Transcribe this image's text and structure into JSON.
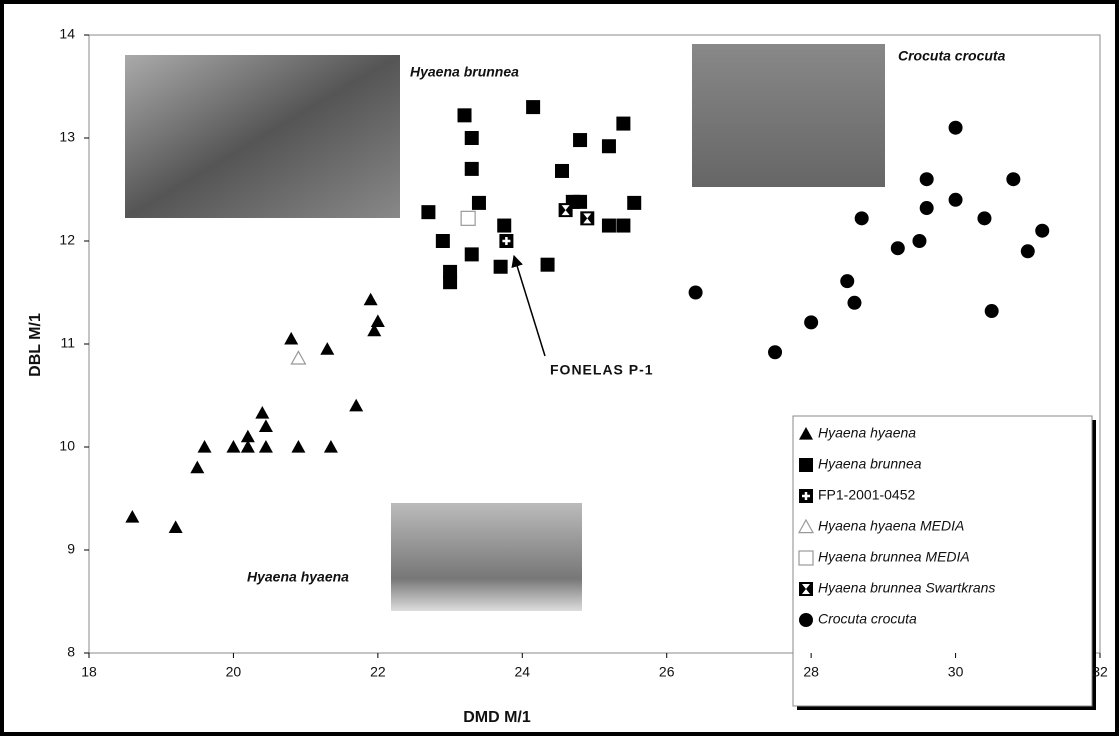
{
  "chart_data": {
    "type": "scatter",
    "xlabel": "DMD M/1",
    "ylabel": "DBL M/1",
    "xlim": [
      18,
      32
    ],
    "ylim": [
      8,
      14
    ],
    "xticks": [
      18,
      20,
      22,
      24,
      26,
      28,
      30,
      32
    ],
    "yticks": [
      8,
      9,
      10,
      11,
      12,
      13,
      14
    ],
    "grid": false,
    "annotations": [
      {
        "text": "Hyaena brunnea"
      },
      {
        "text": "Crocuta crocuta"
      },
      {
        "text": "Hyaena hyaena"
      },
      {
        "text": "FONELAS P-1"
      }
    ],
    "series": [
      {
        "name": "Hyaena hyaena",
        "marker": "triangle",
        "color": "#000000",
        "italic": true,
        "x": [
          18.6,
          19.2,
          19.5,
          19.6,
          20.0,
          20.2,
          20.2,
          20.4,
          20.45,
          20.45,
          20.8,
          20.9,
          21.3,
          21.35,
          21.7,
          21.9,
          22.0,
          21.95
        ],
        "y": [
          9.32,
          9.22,
          9.8,
          10.0,
          10.0,
          10.1,
          10.0,
          10.33,
          10.2,
          10.0,
          11.05,
          10.0,
          10.95,
          10.0,
          10.4,
          11.43,
          11.22,
          11.13
        ]
      },
      {
        "name": "Hyaena brunnea",
        "marker": "square",
        "color": "#000000",
        "italic": true,
        "x": [
          22.7,
          22.9,
          23.0,
          23.0,
          23.2,
          23.3,
          23.3,
          23.4,
          23.3,
          23.75,
          23.7,
          24.15,
          24.35,
          24.55,
          24.7,
          24.8,
          24.8,
          25.2,
          25.2,
          25.4,
          25.4,
          25.55
        ],
        "y": [
          12.28,
          12.0,
          11.7,
          11.6,
          13.22,
          13.0,
          12.7,
          12.37,
          11.87,
          12.15,
          11.75,
          13.3,
          11.77,
          12.68,
          12.38,
          12.38,
          12.98,
          12.15,
          12.92,
          12.15,
          13.14,
          12.37
        ]
      },
      {
        "name": "FP1-2001-0452",
        "marker": "plus-square",
        "color": "#000000",
        "italic": false,
        "x": [
          23.78
        ],
        "y": [
          12.0
        ]
      },
      {
        "name": "Hyaena hyaena MEDIA",
        "marker": "triangle-open",
        "color": "#999999",
        "italic": true,
        "x": [
          20.9
        ],
        "y": [
          10.86
        ]
      },
      {
        "name": "Hyaena brunnea MEDIA",
        "marker": "square-open",
        "color": "#999999",
        "italic": true,
        "x": [
          23.25
        ],
        "y": [
          12.22
        ]
      },
      {
        "name": "Hyaena brunnea Swartkrans",
        "marker": "x-square",
        "color": "#000000",
        "italic": true,
        "x": [
          24.6,
          24.9
        ],
        "y": [
          12.3,
          12.22
        ]
      },
      {
        "name": "Crocuta crocuta",
        "marker": "circle",
        "color": "#000000",
        "italic": true,
        "x": [
          26.4,
          27.5,
          28.0,
          28.5,
          28.6,
          28.7,
          29.2,
          29.5,
          29.6,
          29.6,
          30.0,
          30.0,
          30.4,
          30.5,
          30.8,
          31.0,
          31.2
        ],
        "y": [
          11.5,
          10.92,
          11.21,
          11.61,
          11.4,
          12.22,
          11.93,
          12.0,
          12.32,
          12.6,
          12.4,
          13.1,
          12.22,
          11.32,
          12.6,
          11.9,
          12.1
        ]
      }
    ]
  }
}
